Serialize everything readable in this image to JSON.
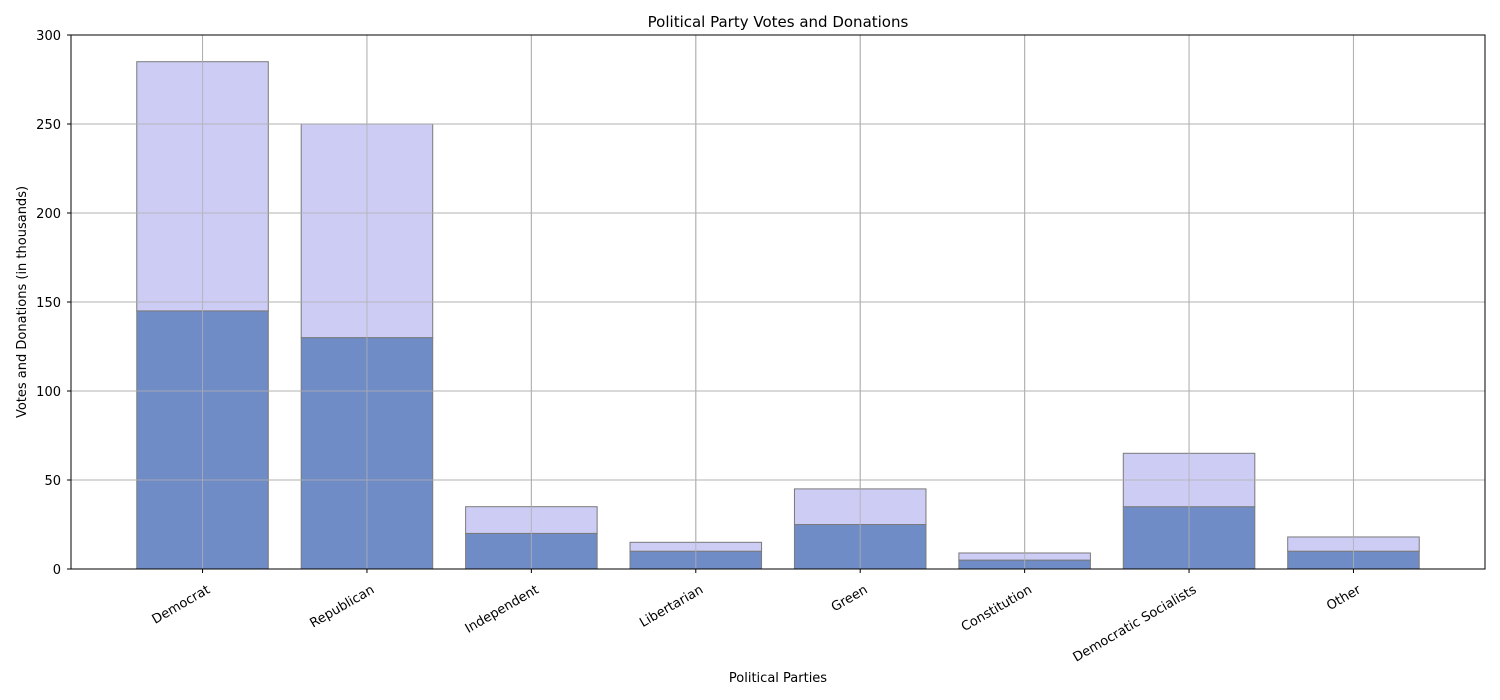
{
  "chart_data": {
    "type": "bar",
    "stacked": true,
    "title": "Political Party Votes and Donations",
    "xlabel": "Political Parties",
    "ylabel": "Votes and Donations (in thousands)",
    "ylim": [
      0,
      300
    ],
    "yticks": [
      0,
      50,
      100,
      150,
      200,
      250,
      300
    ],
    "grid": true,
    "legend": "none",
    "categories": [
      "Democrat",
      "Republican",
      "Independent",
      "Libertarian",
      "Green",
      "Constitution",
      "Democratic Socialists",
      "Other"
    ],
    "series": [
      {
        "values": [
          145,
          130,
          20,
          10,
          25,
          5,
          35,
          10
        ],
        "color": "#6f8cc6"
      },
      {
        "values": [
          140,
          120,
          15,
          5,
          20,
          4,
          30,
          8
        ],
        "color": "#ccccf4"
      }
    ]
  }
}
